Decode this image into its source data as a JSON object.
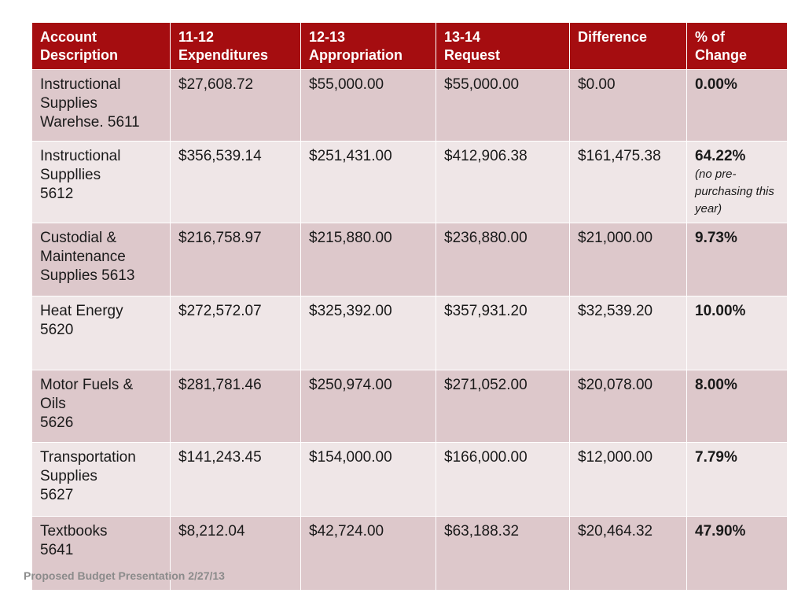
{
  "table": {
    "headers": [
      [
        "Account",
        "Description"
      ],
      [
        "11-12",
        "Expenditures"
      ],
      [
        "12-13",
        "Appropriation"
      ],
      [
        "13-14",
        "Request"
      ],
      [
        "Difference"
      ],
      [
        "% of",
        "Change"
      ]
    ],
    "rows": [
      {
        "description": [
          "Instructional",
          "Supplies",
          "Warehse.  5611"
        ],
        "expenditures": "$27,608.72",
        "appropriation": "$55,000.00",
        "request": "$55,000.00",
        "difference": "$0.00",
        "change": "0.00%",
        "note": ""
      },
      {
        "description": [
          "Instructional",
          "Suppllies",
          "5612"
        ],
        "expenditures": "$356,539.14",
        "appropriation": "$251,431.00",
        "request": "$412,906.38",
        "difference": "$161,475.38",
        "change": "64.22%",
        "note": "(no pre-purchasing this year)"
      },
      {
        "description": [
          "Custodial &",
          "Maintenance",
          "Supplies  5613"
        ],
        "expenditures": "$216,758.97",
        "appropriation": "$215,880.00",
        "request": "$236,880.00",
        "difference": "$21,000.00",
        "change": "9.73%",
        "note": ""
      },
      {
        "description": [
          "Heat Energy",
          "5620"
        ],
        "expenditures": "$272,572.07",
        "appropriation": "$325,392.00",
        "request": "$357,931.20",
        "difference": "$32,539.20",
        "change": "10.00%",
        "note": ""
      },
      {
        "description": [
          "Motor Fuels &",
          "Oils",
          "5626"
        ],
        "expenditures": "$281,781.46",
        "appropriation": "$250,974.00",
        "request": "$271,052.00",
        "difference": "$20,078.00",
        "change": "8.00%",
        "note": ""
      },
      {
        "description": [
          "Transportation",
          "Supplies",
          "5627"
        ],
        "expenditures": "$141,243.45",
        "appropriation": "$154,000.00",
        "request": "$166,000.00",
        "difference": "$12,000.00",
        "change": "7.79%",
        "note": ""
      },
      {
        "description": [
          "Textbooks",
          "5641"
        ],
        "expenditures": "$8,212.04",
        "appropriation": "$42,724.00",
        "request": "$63,188.32",
        "difference": "$20,464.32",
        "change": "47.90%",
        "note": ""
      }
    ]
  },
  "footer": "Proposed Budget Presentation 2/27/13",
  "colors": {
    "header_bg": "#a50d10",
    "row_odd": "#ddc8cb",
    "row_even": "#efe6e7"
  }
}
